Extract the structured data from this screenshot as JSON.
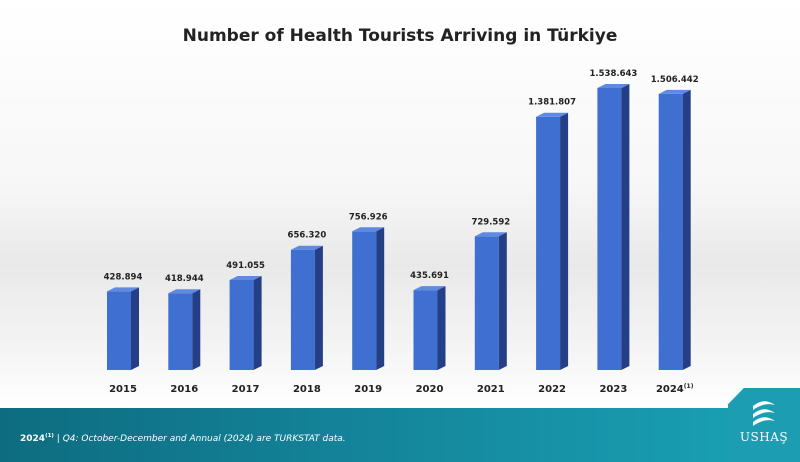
{
  "chart_data": {
    "type": "bar",
    "title": "Number of Health Tourists Arriving in Türkiye",
    "categories": [
      "2015",
      "2016",
      "2017",
      "2018",
      "2019",
      "2020",
      "2021",
      "2022",
      "2023",
      "2024"
    ],
    "category_notes": [
      "",
      "",
      "",
      "",
      "",
      "",
      "",
      "",
      "",
      "(1)"
    ],
    "values": [
      428894,
      418944,
      491055,
      656320,
      756926,
      435691,
      729592,
      1381807,
      1538643,
      1506442
    ],
    "value_labels": [
      "428.894",
      "418.944",
      "491.055",
      "656.320",
      "756.926",
      "435.691",
      "729.592",
      "1.381.807",
      "1.538.643",
      "1.506.442"
    ],
    "bar_color": "#3f6fd0",
    "bar_side_color": "#243f86",
    "bar_top_color": "#5e8ae0",
    "ylim": [
      0,
      1600000
    ],
    "grid": false,
    "legend": "none",
    "xlabel": "",
    "ylabel": ""
  },
  "footer": {
    "note_year": "2024",
    "note_sup": "(1)",
    "note_text": "| Q4: October-December and Annual (2024) are TURKSTAT data."
  },
  "brand": {
    "name": "USHAŞ"
  }
}
